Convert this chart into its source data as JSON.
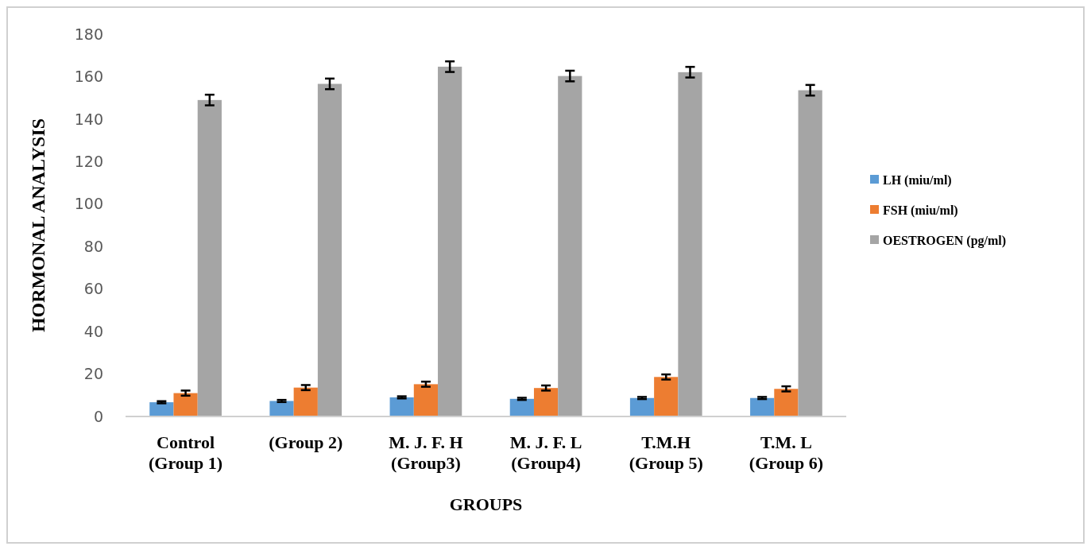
{
  "chart_data": {
    "type": "bar",
    "xlabel": "GROUPS",
    "ylabel": "HORMONAL ANALYSIS",
    "categories": [
      "Control (Group 1)",
      "(Group 2)",
      "M. J. F. H (Group3)",
      "M. J. F. L (Group4)",
      "T.M.H (Group 5)",
      "T.M. L (Group 6)"
    ],
    "series": [
      {
        "name": "LH (miu/ml)",
        "color": "#5b9bd5",
        "values": [
          6.7,
          7.3,
          9.0,
          8.3,
          8.7,
          8.7
        ],
        "errors": [
          0.5,
          0.5,
          0.5,
          0.5,
          0.5,
          0.5
        ]
      },
      {
        "name": "FSH (miu/ml)",
        "color": "#ed7d31",
        "values": [
          11.0,
          13.6,
          15.2,
          13.4,
          18.6,
          13.0
        ],
        "errors": [
          1.2,
          1.2,
          1.2,
          1.2,
          1.2,
          1.2
        ]
      },
      {
        "name": "OESTROGEN (pg/ml)",
        "color": "#a5a5a5",
        "values": [
          149,
          156.6,
          164.7,
          160.3,
          162.1,
          153.6
        ],
        "errors": [
          2.5,
          2.5,
          2.5,
          2.5,
          2.5,
          2.5
        ]
      }
    ],
    "ylim": [
      0,
      180
    ],
    "yticks": [
      0,
      20,
      40,
      60,
      80,
      100,
      120,
      140,
      160,
      180
    ],
    "grid": false,
    "legend": "right"
  }
}
